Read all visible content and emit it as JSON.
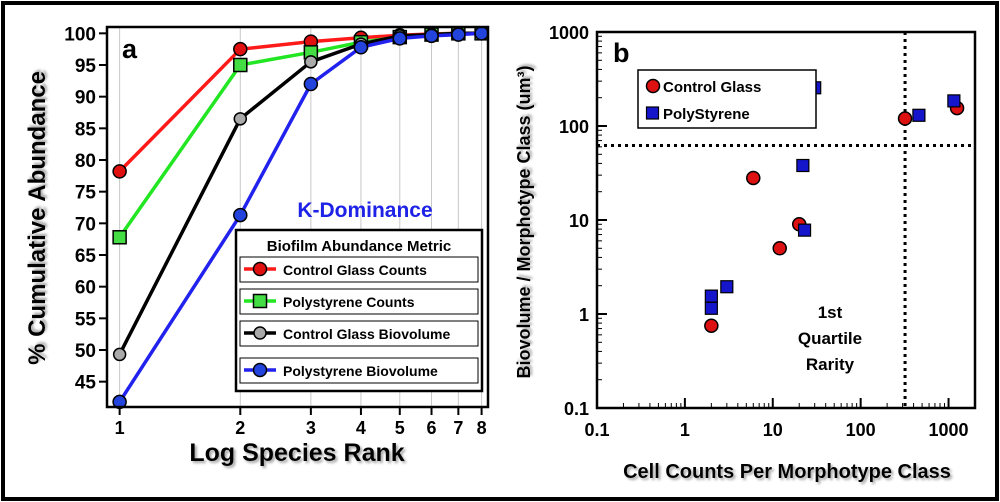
{
  "chart_data": [
    {
      "type": "line",
      "panel_label": "a",
      "xlabel": "Log Species Rank",
      "ylabel": "% Cumulative Abundance",
      "xscale": "log",
      "xlim": [
        0.93,
        8.3
      ],
      "ylim": [
        41,
        101
      ],
      "x_ticks": [
        1,
        2,
        3,
        4,
        5,
        6,
        7,
        8
      ],
      "x_tick_labels": [
        "1",
        "2",
        "3",
        "4",
        "5",
        "6",
        "7",
        "8"
      ],
      "y_ticks": [
        45,
        50,
        55,
        60,
        65,
        70,
        75,
        80,
        85,
        90,
        95,
        100
      ],
      "y_tick_labels": [
        "45",
        "50",
        "55",
        "60",
        "65",
        "70",
        "75",
        "80",
        "85",
        "90",
        "95",
        "100"
      ],
      "annotation": "K-Dominance",
      "annotation_color": "#1e22e6",
      "legend_title": "Biofilm Abundance Metric",
      "series": [
        {
          "name": "Control Glass Counts",
          "color": "#ff1a1a",
          "marker": "circle",
          "marker_fill": "#e01010",
          "x": [
            1,
            2,
            3,
            4,
            5,
            6,
            7,
            8
          ],
          "values": [
            78.2,
            97.5,
            98.7,
            99.3,
            99.7,
            99.9,
            100,
            100
          ]
        },
        {
          "name": "Polystyrene Counts",
          "color": "#22e622",
          "marker": "square",
          "marker_fill": "#44dd44",
          "x": [
            1,
            2,
            3,
            4,
            5,
            6,
            7,
            8
          ],
          "values": [
            67.8,
            95.0,
            97.0,
            98.6,
            99.4,
            99.8,
            100,
            100
          ]
        },
        {
          "name": "Control Glass Biovolume",
          "color": "#000000",
          "marker": "circle",
          "marker_fill": "#aaaaaa",
          "x": [
            1,
            2,
            3,
            4,
            5,
            6,
            7,
            8
          ],
          "values": [
            49.3,
            86.5,
            95.5,
            98.3,
            99.6,
            99.8,
            100,
            100
          ]
        },
        {
          "name": "Polystyrene Biovolume",
          "color": "#2222ee",
          "marker": "circle",
          "marker_fill": "#2244dd",
          "x": [
            1,
            2,
            3,
            4,
            5,
            6,
            7,
            8
          ],
          "values": [
            41.8,
            71.3,
            92.0,
            97.8,
            99.2,
            99.6,
            99.8,
            100
          ]
        }
      ]
    },
    {
      "type": "scatter",
      "panel_label": "b",
      "xlabel": "Cell Counts Per Morphotype Class",
      "ylabel": "Biovolume / Morphotype Class (um³)",
      "xscale": "log",
      "yscale": "log",
      "xlim": [
        0.1,
        2000
      ],
      "ylim": [
        0.1,
        1000
      ],
      "x_ticks": [
        0.1,
        1,
        10,
        100,
        1000
      ],
      "x_tick_labels": [
        "0.1",
        "1",
        "10",
        "100",
        "1000"
      ],
      "y_ticks": [
        0.1,
        1,
        10,
        100,
        1000
      ],
      "y_tick_labels": [
        "0.1",
        "1",
        "10",
        "100",
        "1000"
      ],
      "reference_lines": {
        "x": 320,
        "y": 62
      },
      "annotation_lines": [
        "1st",
        "Quartile",
        "Rarity"
      ],
      "series": [
        {
          "name": "Control Glass",
          "marker": "circle",
          "color": "#dd1111",
          "x": [
            2,
            6,
            12,
            20,
            320,
            1250
          ],
          "y": [
            0.75,
            28,
            5,
            9,
            120,
            155
          ]
        },
        {
          "name": "PolyStyrene",
          "marker": "square",
          "color": "#1515cc",
          "x": [
            2,
            2,
            3,
            22,
            23,
            30,
            460,
            1150
          ],
          "y": [
            1.15,
            1.55,
            1.95,
            38,
            7.8,
            255,
            130,
            185
          ]
        }
      ]
    }
  ]
}
